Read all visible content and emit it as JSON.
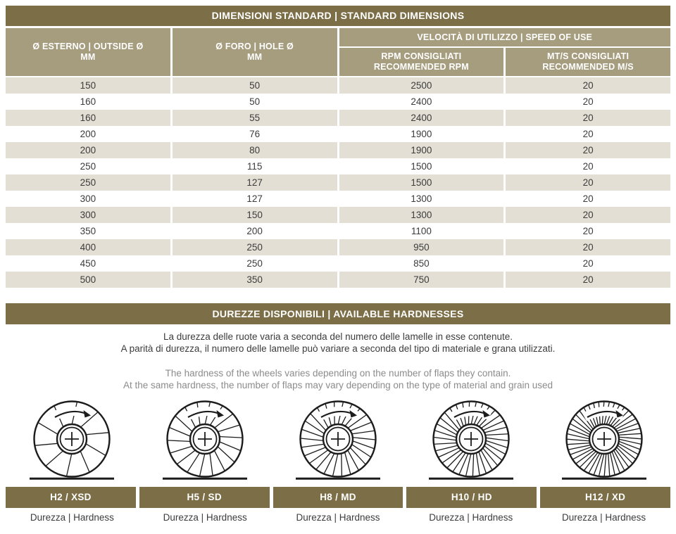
{
  "colors": {
    "header_dark": "#7c6e47",
    "header_tan": "#a69c7e",
    "row_alt": "#e3dfd4",
    "text_dark": "#3c3c3c",
    "text_gray": "#8c8c8c"
  },
  "dimensions_table": {
    "title": "DIMENSIONI STANDARD | STANDARD DIMENSIONS",
    "col1_header": {
      "line1": "Ø ESTERNO | OUTSIDE Ø",
      "line2": "MM"
    },
    "col2_header": {
      "line1": "Ø FORO | HOLE Ø",
      "line2": "MM"
    },
    "speed_group_header": "VELOCITÀ DI UTILIZZO | SPEED OF USE",
    "col3_header": {
      "line1": "RPM CONSIGLIATI",
      "line2": "RECOMMENDED RPM"
    },
    "col4_header": {
      "line1": "MT/S CONSIGLIATI",
      "line2": "RECOMMENDED M/S"
    },
    "rows": [
      [
        "150",
        "50",
        "2500",
        "20"
      ],
      [
        "160",
        "50",
        "2400",
        "20"
      ],
      [
        "160",
        "55",
        "2400",
        "20"
      ],
      [
        "200",
        "76",
        "1900",
        "20"
      ],
      [
        "200",
        "80",
        "1900",
        "20"
      ],
      [
        "250",
        "115",
        "1500",
        "20"
      ],
      [
        "250",
        "127",
        "1500",
        "20"
      ],
      [
        "300",
        "127",
        "1300",
        "20"
      ],
      [
        "300",
        "150",
        "1300",
        "20"
      ],
      [
        "350",
        "200",
        "1100",
        "20"
      ],
      [
        "400",
        "250",
        "950",
        "20"
      ],
      [
        "450",
        "250",
        "850",
        "20"
      ],
      [
        "500",
        "350",
        "750",
        "20"
      ]
    ]
  },
  "hardness_section": {
    "title": "DUREZZE DISPONIBILI | AVAILABLE HARDNESSES",
    "text_it_line1": "La durezza delle ruote varia a seconda del numero delle lamelle in esse contenute.",
    "text_it_line2": "A parità di durezza, il numero delle lamelle può variare a seconda del tipo di materiale e grana utilizzati.",
    "text_en_line1": "The hardness of the wheels varies depending on the number of flaps they contain.",
    "text_en_line2": "At the same hardness, the number of flaps may vary depending on the type of material and grain used",
    "wheels": [
      {
        "label": "H2 / XSD",
        "sublabel": "Durezza | Hardness",
        "flaps": 10
      },
      {
        "label": "H5 / SD",
        "sublabel": "Durezza | Hardness",
        "flaps": 18
      },
      {
        "label": "H8 / MD",
        "sublabel": "Durezza | Hardness",
        "flaps": 26
      },
      {
        "label": "H10 / HD",
        "sublabel": "Durezza | Hardness",
        "flaps": 34
      },
      {
        "label": "H12 / XD",
        "sublabel": "Durezza | Hardness",
        "flaps": 44
      }
    ]
  }
}
